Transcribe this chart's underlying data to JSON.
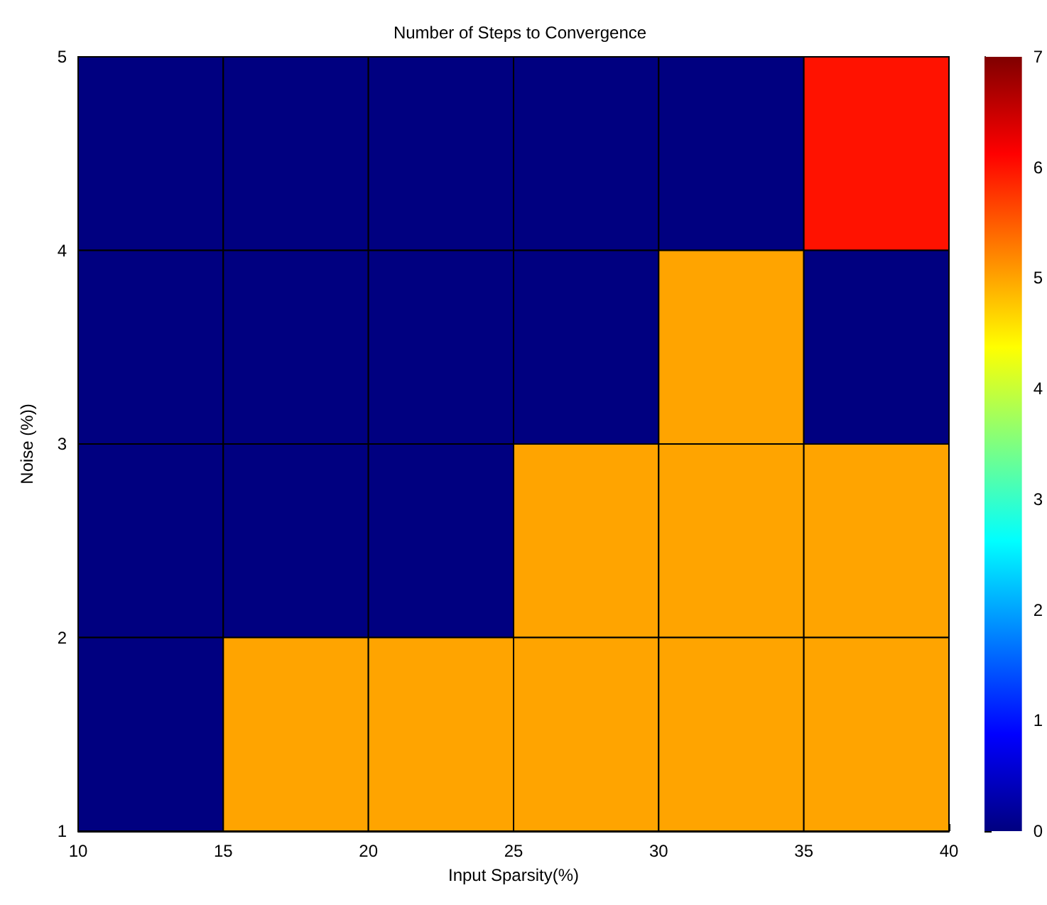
{
  "chart_data": {
    "type": "heatmap",
    "title": "Number of Steps to Convergence",
    "xlabel": "Input Sparsity(%)",
    "ylabel": "Noise (%))",
    "xlim": [
      10,
      40
    ],
    "xticks": [
      10,
      15,
      20,
      25,
      30,
      35,
      40
    ],
    "ylim": [
      1,
      5
    ],
    "yticks": [
      1,
      2,
      3,
      4,
      5
    ],
    "cells": [
      [
        0,
        0,
        0,
        0,
        0,
        6
      ],
      [
        0,
        0,
        0,
        0,
        5,
        0
      ],
      [
        0,
        0,
        0,
        5,
        5,
        5
      ],
      [
        0,
        5,
        5,
        5,
        5,
        5
      ]
    ],
    "clim": [
      0,
      7
    ],
    "cticks": [
      0,
      1,
      2,
      3,
      4,
      5,
      6,
      7
    ]
  }
}
